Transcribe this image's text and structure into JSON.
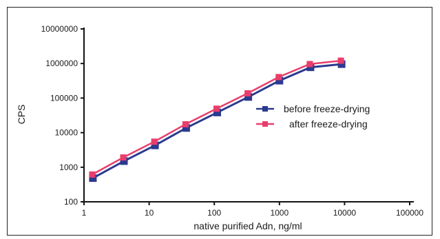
{
  "chart_data": {
    "type": "line",
    "title": "",
    "xlabel": "native purified Adn, ng/ml",
    "ylabel": "CPS",
    "x_scale": "log",
    "y_scale": "log",
    "xlim": [
      1,
      100000
    ],
    "ylim": [
      100,
      10000000
    ],
    "x_ticks": [
      1,
      10,
      100,
      1000,
      10000,
      100000
    ],
    "x_tick_labels": [
      "1",
      "10",
      "100",
      "1000",
      "10000",
      "100000"
    ],
    "y_ticks": [
      100,
      1000,
      10000,
      100000,
      1000000,
      10000000
    ],
    "y_tick_labels": [
      "100",
      "1000",
      "10000",
      "100000",
      "1000000",
      "10000000"
    ],
    "grid": false,
    "legend_position": "right",
    "x": [
      1.37,
      4.1,
      12.3,
      37,
      111,
      333,
      1000,
      3000,
      9000
    ],
    "series": [
      {
        "name": "before freeze-drying",
        "color": "#2b3a8f",
        "marker": "square",
        "values": [
          530,
          1650,
          4700,
          15000,
          42000,
          118000,
          350000,
          850000,
          1050000
        ]
      },
      {
        "name": "after freeze-drying",
        "color": "#e83e6c",
        "marker": "square",
        "values": [
          560,
          1750,
          5000,
          16000,
          45000,
          125000,
          370000,
          880000,
          1100000
        ]
      }
    ]
  }
}
